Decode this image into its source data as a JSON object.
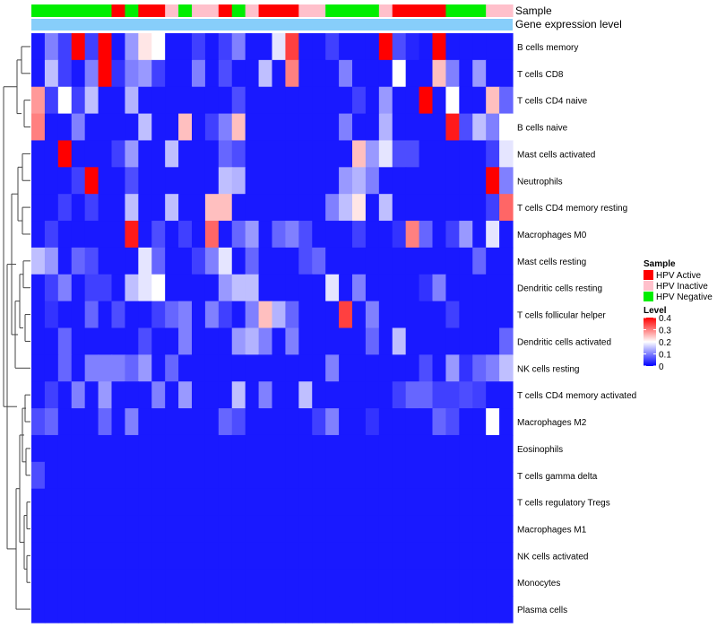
{
  "chart_data": {
    "type": "heatmap",
    "title": "",
    "annotation_labels": [
      "Sample",
      "Gene expression level"
    ],
    "rows": [
      "B cells memory",
      "T cells CD8",
      "T cells CD4 naive",
      "B cells naive",
      "Mast cells activated",
      "Neutrophils",
      "T cells CD4 memory resting",
      "Macrophages M0",
      "Mast cells resting",
      "Dendritic cells resting",
      "T cells follicular helper",
      "Dendritic cells activated",
      "NK cells resting",
      "T cells CD4 memory activated",
      "Macrophages M2",
      "Eosinophils",
      "T cells gamma delta",
      "T cells regulatory  Tregs",
      "Macrophages M1",
      "NK cells activated",
      "Monocytes",
      "Plasma cells"
    ],
    "column_count": 36,
    "sample_groups": [
      "N",
      "N",
      "N",
      "N",
      "N",
      "N",
      "A",
      "N",
      "A",
      "A",
      "I",
      "N",
      "I",
      "I",
      "A",
      "N",
      "I",
      "A",
      "A",
      "A",
      "I",
      "I",
      "N",
      "N",
      "N",
      "N",
      "I",
      "A",
      "A",
      "A",
      "A",
      "N",
      "N",
      "N",
      "I",
      "I"
    ],
    "sample_group_colors": {
      "A": "#ff0000",
      "I": "#ffc0cb",
      "N": "#00ee00"
    },
    "gene_expression_bar_color": "#87cefa",
    "values": [
      [
        0.02,
        0.1,
        0.05,
        0.4,
        0.05,
        0.4,
        0.02,
        0.12,
        0.22,
        0.2,
        0.02,
        0.02,
        0.05,
        0.02,
        0.05,
        0.1,
        0.02,
        0.02,
        0.18,
        0.35,
        0.02,
        0.02,
        0.05,
        0.02,
        0.02,
        0.02,
        0.4,
        0.06,
        0.03,
        0.02,
        0.4,
        0.02,
        0.02,
        0.02,
        0.02,
        0.02
      ],
      [
        0.02,
        0.15,
        0.05,
        0.02,
        0.1,
        0.4,
        0.04,
        0.1,
        0.12,
        0.05,
        0.02,
        0.02,
        0.1,
        0.02,
        0.06,
        0.02,
        0.02,
        0.15,
        0.02,
        0.3,
        0.02,
        0.02,
        0.02,
        0.1,
        0.02,
        0.02,
        0.02,
        0.2,
        0.02,
        0.02,
        0.25,
        0.1,
        0.02,
        0.12,
        0.02,
        0.02
      ],
      [
        0.28,
        0.05,
        0.2,
        0.05,
        0.15,
        0.02,
        0.02,
        0.14,
        0.02,
        0.02,
        0.02,
        0.02,
        0.02,
        0.02,
        0.02,
        0.06,
        0.02,
        0.02,
        0.02,
        0.02,
        0.02,
        0.02,
        0.02,
        0.02,
        0.05,
        0.02,
        0.12,
        0.02,
        0.02,
        0.4,
        0.02,
        0.2,
        0.02,
        0.02,
        0.25,
        0.08
      ],
      [
        0.3,
        0.02,
        0.02,
        0.1,
        0.02,
        0.02,
        0.02,
        0.02,
        0.15,
        0.02,
        0.02,
        0.25,
        0.02,
        0.05,
        0.1,
        0.25,
        0.02,
        0.02,
        0.02,
        0.02,
        0.02,
        0.02,
        0.02,
        0.1,
        0.02,
        0.02,
        0.14,
        0.02,
        0.02,
        0.02,
        0.02,
        0.38,
        0.06,
        0.15,
        0.1,
        0.2
      ],
      [
        0.02,
        0.02,
        0.4,
        0.02,
        0.02,
        0.02,
        0.05,
        0.12,
        0.02,
        0.02,
        0.15,
        0.02,
        0.02,
        0.02,
        0.08,
        0.06,
        0.02,
        0.02,
        0.02,
        0.02,
        0.02,
        0.02,
        0.02,
        0.02,
        0.25,
        0.12,
        0.18,
        0.06,
        0.06,
        0.02,
        0.02,
        0.02,
        0.02,
        0.02,
        0.05,
        0.18
      ],
      [
        0.02,
        0.02,
        0.02,
        0.05,
        0.4,
        0.02,
        0.02,
        0.06,
        0.02,
        0.02,
        0.02,
        0.02,
        0.02,
        0.02,
        0.15,
        0.14,
        0.02,
        0.02,
        0.02,
        0.02,
        0.02,
        0.02,
        0.02,
        0.12,
        0.14,
        0.1,
        0.02,
        0.02,
        0.02,
        0.02,
        0.02,
        0.02,
        0.02,
        0.02,
        0.4,
        0.1
      ],
      [
        0.02,
        0.02,
        0.05,
        0.02,
        0.05,
        0.02,
        0.02,
        0.15,
        0.02,
        0.02,
        0.15,
        0.02,
        0.02,
        0.25,
        0.25,
        0.02,
        0.02,
        0.02,
        0.02,
        0.02,
        0.02,
        0.02,
        0.1,
        0.15,
        0.22,
        0.02,
        0.15,
        0.02,
        0.02,
        0.02,
        0.02,
        0.02,
        0.02,
        0.02,
        0.05,
        0.32
      ],
      [
        0.02,
        0.05,
        0.02,
        0.02,
        0.02,
        0.02,
        0.02,
        0.38,
        0.02,
        0.06,
        0.02,
        0.05,
        0.02,
        0.32,
        0.02,
        0.08,
        0.12,
        0.02,
        0.08,
        0.1,
        0.06,
        0.02,
        0.02,
        0.02,
        0.05,
        0.02,
        0.02,
        0.04,
        0.3,
        0.08,
        0.02,
        0.05,
        0.12,
        0.02,
        0.18,
        0.02
      ],
      [
        0.15,
        0.12,
        0.02,
        0.08,
        0.06,
        0.02,
        0.02,
        0.02,
        0.18,
        0.08,
        0.02,
        0.02,
        0.05,
        0.1,
        0.18,
        0.02,
        0.08,
        0.02,
        0.02,
        0.02,
        0.06,
        0.08,
        0.02,
        0.02,
        0.02,
        0.02,
        0.02,
        0.02,
        0.02,
        0.02,
        0.02,
        0.02,
        0.02,
        0.08,
        0.02,
        0.02
      ],
      [
        0.02,
        0.05,
        0.1,
        0.02,
        0.05,
        0.05,
        0.02,
        0.15,
        0.18,
        0.2,
        0.02,
        0.02,
        0.02,
        0.02,
        0.12,
        0.15,
        0.15,
        0.02,
        0.02,
        0.02,
        0.02,
        0.02,
        0.18,
        0.02,
        0.1,
        0.02,
        0.02,
        0.02,
        0.02,
        0.04,
        0.1,
        0.02,
        0.02,
        0.02,
        0.02,
        0.02
      ],
      [
        0.02,
        0.04,
        0.02,
        0.02,
        0.08,
        0.02,
        0.06,
        0.02,
        0.02,
        0.05,
        0.08,
        0.1,
        0.02,
        0.1,
        0.05,
        0.02,
        0.1,
        0.25,
        0.14,
        0.08,
        0.02,
        0.02,
        0.02,
        0.35,
        0.02,
        0.1,
        0.02,
        0.02,
        0.02,
        0.02,
        0.02,
        0.05,
        0.02,
        0.02,
        0.02,
        0.02
      ],
      [
        0.02,
        0.02,
        0.08,
        0.02,
        0.02,
        0.02,
        0.02,
        0.02,
        0.06,
        0.02,
        0.02,
        0.1,
        0.02,
        0.02,
        0.02,
        0.12,
        0.14,
        0.1,
        0.02,
        0.1,
        0.02,
        0.02,
        0.02,
        0.02,
        0.02,
        0.08,
        0.02,
        0.15,
        0.02,
        0.02,
        0.02,
        0.02,
        0.02,
        0.02,
        0.02,
        0.08
      ],
      [
        0.02,
        0.02,
        0.08,
        0.02,
        0.1,
        0.1,
        0.1,
        0.08,
        0.12,
        0.02,
        0.08,
        0.02,
        0.02,
        0.02,
        0.02,
        0.02,
        0.02,
        0.02,
        0.02,
        0.02,
        0.02,
        0.02,
        0.1,
        0.02,
        0.02,
        0.02,
        0.02,
        0.02,
        0.02,
        0.06,
        0.02,
        0.12,
        0.04,
        0.08,
        0.1,
        0.15
      ],
      [
        0.02,
        0.05,
        0.02,
        0.1,
        0.02,
        0.12,
        0.02,
        0.02,
        0.02,
        0.1,
        0.02,
        0.12,
        0.02,
        0.02,
        0.02,
        0.15,
        0.02,
        0.1,
        0.02,
        0.02,
        0.15,
        0.02,
        0.02,
        0.02,
        0.02,
        0.02,
        0.02,
        0.05,
        0.08,
        0.08,
        0.05,
        0.05,
        0.06,
        0.05,
        0.02,
        0.02
      ],
      [
        0.06,
        0.08,
        0.02,
        0.02,
        0.02,
        0.08,
        0.02,
        0.1,
        0.02,
        0.02,
        0.02,
        0.02,
        0.02,
        0.02,
        0.08,
        0.06,
        0.02,
        0.02,
        0.02,
        0.02,
        0.02,
        0.05,
        0.1,
        0.02,
        0.02,
        0.04,
        0.02,
        0.02,
        0.02,
        0.02,
        0.08,
        0.06,
        0.02,
        0.02,
        0.2,
        0.02
      ],
      [
        0.02,
        0.02,
        0.02,
        0.02,
        0.02,
        0.02,
        0.02,
        0.02,
        0.02,
        0.02,
        0.02,
        0.02,
        0.02,
        0.02,
        0.02,
        0.02,
        0.02,
        0.02,
        0.02,
        0.02,
        0.02,
        0.02,
        0.02,
        0.02,
        0.02,
        0.02,
        0.02,
        0.02,
        0.02,
        0.02,
        0.02,
        0.02,
        0.02,
        0.02,
        0.02,
        0.02
      ],
      [
        0.06,
        0.02,
        0.02,
        0.02,
        0.02,
        0.02,
        0.02,
        0.02,
        0.02,
        0.02,
        0.02,
        0.02,
        0.02,
        0.02,
        0.02,
        0.02,
        0.02,
        0.02,
        0.02,
        0.02,
        0.02,
        0.02,
        0.02,
        0.02,
        0.02,
        0.02,
        0.02,
        0.02,
        0.02,
        0.02,
        0.02,
        0.02,
        0.02,
        0.02,
        0.02,
        0.02
      ],
      [
        0.02,
        0.02,
        0.02,
        0.02,
        0.02,
        0.02,
        0.02,
        0.02,
        0.02,
        0.02,
        0.02,
        0.02,
        0.02,
        0.02,
        0.02,
        0.02,
        0.02,
        0.02,
        0.02,
        0.02,
        0.02,
        0.02,
        0.02,
        0.02,
        0.02,
        0.02,
        0.02,
        0.02,
        0.02,
        0.02,
        0.02,
        0.02,
        0.02,
        0.02,
        0.02,
        0.02
      ],
      [
        0.02,
        0.02,
        0.02,
        0.02,
        0.02,
        0.02,
        0.02,
        0.02,
        0.02,
        0.02,
        0.02,
        0.02,
        0.02,
        0.02,
        0.02,
        0.02,
        0.02,
        0.02,
        0.02,
        0.02,
        0.02,
        0.02,
        0.02,
        0.02,
        0.02,
        0.02,
        0.02,
        0.02,
        0.02,
        0.02,
        0.02,
        0.02,
        0.02,
        0.02,
        0.02,
        0.02
      ],
      [
        0.02,
        0.02,
        0.02,
        0.02,
        0.02,
        0.02,
        0.02,
        0.02,
        0.02,
        0.02,
        0.02,
        0.02,
        0.02,
        0.02,
        0.02,
        0.02,
        0.02,
        0.02,
        0.02,
        0.02,
        0.02,
        0.02,
        0.02,
        0.02,
        0.02,
        0.02,
        0.02,
        0.02,
        0.02,
        0.02,
        0.02,
        0.02,
        0.02,
        0.02,
        0.02,
        0.02
      ],
      [
        0.02,
        0.02,
        0.02,
        0.02,
        0.02,
        0.02,
        0.02,
        0.02,
        0.02,
        0.02,
        0.02,
        0.02,
        0.02,
        0.02,
        0.02,
        0.02,
        0.02,
        0.02,
        0.02,
        0.02,
        0.02,
        0.02,
        0.02,
        0.02,
        0.02,
        0.02,
        0.02,
        0.02,
        0.02,
        0.02,
        0.02,
        0.02,
        0.02,
        0.02,
        0.02,
        0.02
      ],
      [
        0.02,
        0.02,
        0.02,
        0.02,
        0.02,
        0.02,
        0.02,
        0.02,
        0.02,
        0.02,
        0.02,
        0.02,
        0.02,
        0.02,
        0.02,
        0.02,
        0.02,
        0.02,
        0.02,
        0.02,
        0.02,
        0.02,
        0.02,
        0.02,
        0.02,
        0.02,
        0.02,
        0.02,
        0.02,
        0.02,
        0.02,
        0.02,
        0.02,
        0.02,
        0.02,
        0.02
      ]
    ],
    "color_scale": {
      "low": "#0000ff",
      "mid": "#ffffff",
      "high": "#ff0000",
      "min": 0,
      "mid_value": 0.2,
      "max": 0.4
    },
    "legend": {
      "sample_title": "Sample",
      "sample_entries": [
        {
          "label": "HPV Active",
          "color": "#ff0000"
        },
        {
          "label": "HPV Inactive",
          "color": "#ffc0cb"
        },
        {
          "label": "HPV Negative",
          "color": "#00ee00"
        }
      ],
      "level_title": "Level",
      "level_ticks": [
        "0.4",
        "0.3",
        "0.2",
        "0.1",
        "0"
      ],
      "placement": "right"
    }
  }
}
